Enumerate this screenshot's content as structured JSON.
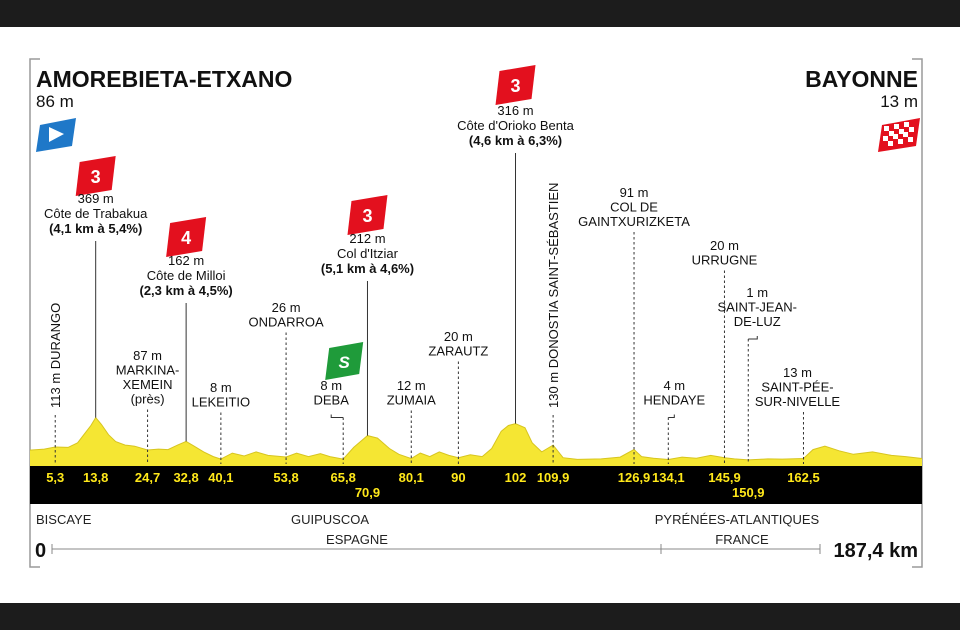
{
  "header": {
    "start": {
      "name": "AMOREBIETA-ETXANO",
      "altitude": "86 m"
    },
    "finish": {
      "name": "BAYONNE",
      "altitude": "13 m"
    }
  },
  "footer": {
    "distance_start": "0",
    "distance_end": "187,4 km",
    "countries": [
      "ESPAGNE",
      "FRANCE"
    ],
    "regions": [
      "BISCAYE",
      "GUIPUSCOA",
      "PYRÉNÉES-ATLANTIQUES"
    ]
  },
  "colors": {
    "profile_fill": "#f5e633",
    "km_bar": "#000000",
    "km_label": "#ffe81a",
    "climb_badge": "#e3101e",
    "sprint_badge": "#1f9b3a",
    "start_flag": "#1f78c8",
    "finish_flag": "#e3101e"
  },
  "chart_data": {
    "type": "area",
    "title": "",
    "xlabel": "",
    "ylabel": "",
    "xlim": [
      0,
      187.4
    ],
    "ylim": [
      0,
      400
    ],
    "profile": [
      [
        0,
        86
      ],
      [
        3,
        95
      ],
      [
        5.3,
        113
      ],
      [
        8,
        110
      ],
      [
        10,
        150
      ],
      [
        11.5,
        230
      ],
      [
        12.8,
        300
      ],
      [
        13.8,
        369
      ],
      [
        15,
        310
      ],
      [
        16.5,
        220
      ],
      [
        18,
        160
      ],
      [
        20,
        130
      ],
      [
        22,
        120
      ],
      [
        24.7,
        87
      ],
      [
        27,
        95
      ],
      [
        29,
        90
      ],
      [
        31,
        130
      ],
      [
        32.8,
        162
      ],
      [
        34.5,
        120
      ],
      [
        36.5,
        70
      ],
      [
        38.5,
        30
      ],
      [
        40.1,
        8
      ],
      [
        42.5,
        60
      ],
      [
        45,
        35
      ],
      [
        47.5,
        70
      ],
      [
        50,
        40
      ],
      [
        53.8,
        26
      ],
      [
        56,
        60
      ],
      [
        58.5,
        30
      ],
      [
        61,
        55
      ],
      [
        63,
        30
      ],
      [
        65.8,
        8
      ],
      [
        68,
        110
      ],
      [
        70.9,
        212
      ],
      [
        73,
        190
      ],
      [
        75.5,
        100
      ],
      [
        77.5,
        50
      ],
      [
        80.1,
        12
      ],
      [
        82,
        60
      ],
      [
        84,
        30
      ],
      [
        86,
        70
      ],
      [
        88,
        40
      ],
      [
        90,
        20
      ],
      [
        92.5,
        45
      ],
      [
        95,
        30
      ],
      [
        97,
        100
      ],
      [
        99,
        250
      ],
      [
        100.5,
        300
      ],
      [
        102,
        316
      ],
      [
        104,
        280
      ],
      [
        105.5,
        150
      ],
      [
        107.5,
        70
      ],
      [
        109.9,
        130
      ],
      [
        112,
        20
      ],
      [
        115,
        5
      ],
      [
        120,
        10
      ],
      [
        124,
        25
      ],
      [
        126.9,
        91
      ],
      [
        128.5,
        30
      ],
      [
        131,
        15
      ],
      [
        134.1,
        4
      ],
      [
        137,
        25
      ],
      [
        140,
        15
      ],
      [
        143,
        40
      ],
      [
        145.9,
        20
      ],
      [
        148,
        10
      ],
      [
        150.9,
        1
      ],
      [
        153,
        5
      ],
      [
        155,
        10
      ],
      [
        158,
        8
      ],
      [
        162.5,
        13
      ],
      [
        164.5,
        90
      ],
      [
        167,
        120
      ],
      [
        170,
        80
      ],
      [
        173,
        50
      ],
      [
        177,
        70
      ],
      [
        181,
        40
      ],
      [
        184,
        30
      ],
      [
        187.4,
        13
      ]
    ],
    "km_labels": [
      {
        "km": 5.3,
        "label": "5,3"
      },
      {
        "km": 13.8,
        "label": "13,8"
      },
      {
        "km": 24.7,
        "label": "24,7"
      },
      {
        "km": 32.8,
        "label": "32,8"
      },
      {
        "km": 40.1,
        "label": "40,1"
      },
      {
        "km": 53.8,
        "label": "53,8"
      },
      {
        "km": 65.8,
        "label": "65,8"
      },
      {
        "km": 70.9,
        "label": "70,9"
      },
      {
        "km": 80.1,
        "label": "80,1"
      },
      {
        "km": 90,
        "label": "90"
      },
      {
        "km": 102,
        "label": "102"
      },
      {
        "km": 109.9,
        "label": "109,9"
      },
      {
        "km": 126.9,
        "label": "126,9"
      },
      {
        "km": 134.1,
        "label": "134,1"
      },
      {
        "km": 145.9,
        "label": "145,9"
      },
      {
        "km": 150.9,
        "label": "150,9"
      },
      {
        "km": 162.5,
        "label": "162,5"
      }
    ],
    "climbs": [
      {
        "km": 13.8,
        "category": "3",
        "altitude": "369 m",
        "name": "Côte de Trabakua",
        "stats": "(4,1 km à 5,4%)"
      },
      {
        "km": 32.8,
        "category": "4",
        "altitude": "162 m",
        "name": "Côte de Milloi",
        "stats": "(2,3 km à 4,5%)"
      },
      {
        "km": 70.9,
        "category": "3",
        "altitude": "212 m",
        "name": "Col d'Itziar",
        "stats": "(5,1 km à 4,6%)"
      },
      {
        "km": 102,
        "category": "3",
        "altitude": "316 m",
        "name": "Côte d'Orioko Benta",
        "stats": "(4,6 km à 6,3%)"
      }
    ],
    "sprint": {
      "km": 65.8,
      "badge": "S"
    },
    "places": [
      {
        "km": 5.3,
        "text": "113 m DURANGO"
      },
      {
        "km": 24.7,
        "lines": [
          "87 m",
          "MARKINA-",
          "XEMEIN",
          "(près)"
        ]
      },
      {
        "km": 40.1,
        "lines": [
          "8 m",
          "LEKEITIO"
        ]
      },
      {
        "km": 53.8,
        "lines": [
          "26 m",
          "ONDARROA"
        ]
      },
      {
        "km": 65.8,
        "lines": [
          "8 m",
          "DEBA"
        ]
      },
      {
        "km": 80.1,
        "lines": [
          "12 m",
          "ZUMAIA"
        ]
      },
      {
        "km": 90,
        "lines": [
          "20 m",
          "ZARAUTZ"
        ]
      },
      {
        "km": 109.9,
        "text": "130 m DONOSTIA SAINT-SÉBASTIEN"
      },
      {
        "km": 126.9,
        "lines": [
          "91 m",
          "COL DE",
          "GAINTXURIZKETA"
        ]
      },
      {
        "km": 134.1,
        "lines": [
          "4 m",
          "HENDAYE"
        ]
      },
      {
        "km": 145.9,
        "lines": [
          "20 m",
          "URRUGNE"
        ]
      },
      {
        "km": 150.9,
        "lines": [
          "1 m",
          "SAINT-JEAN-",
          "DE-LUZ"
        ]
      },
      {
        "km": 162.5,
        "lines": [
          "13 m",
          "SAINT-PÉE-",
          "SUR-NIVELLE"
        ]
      }
    ]
  }
}
